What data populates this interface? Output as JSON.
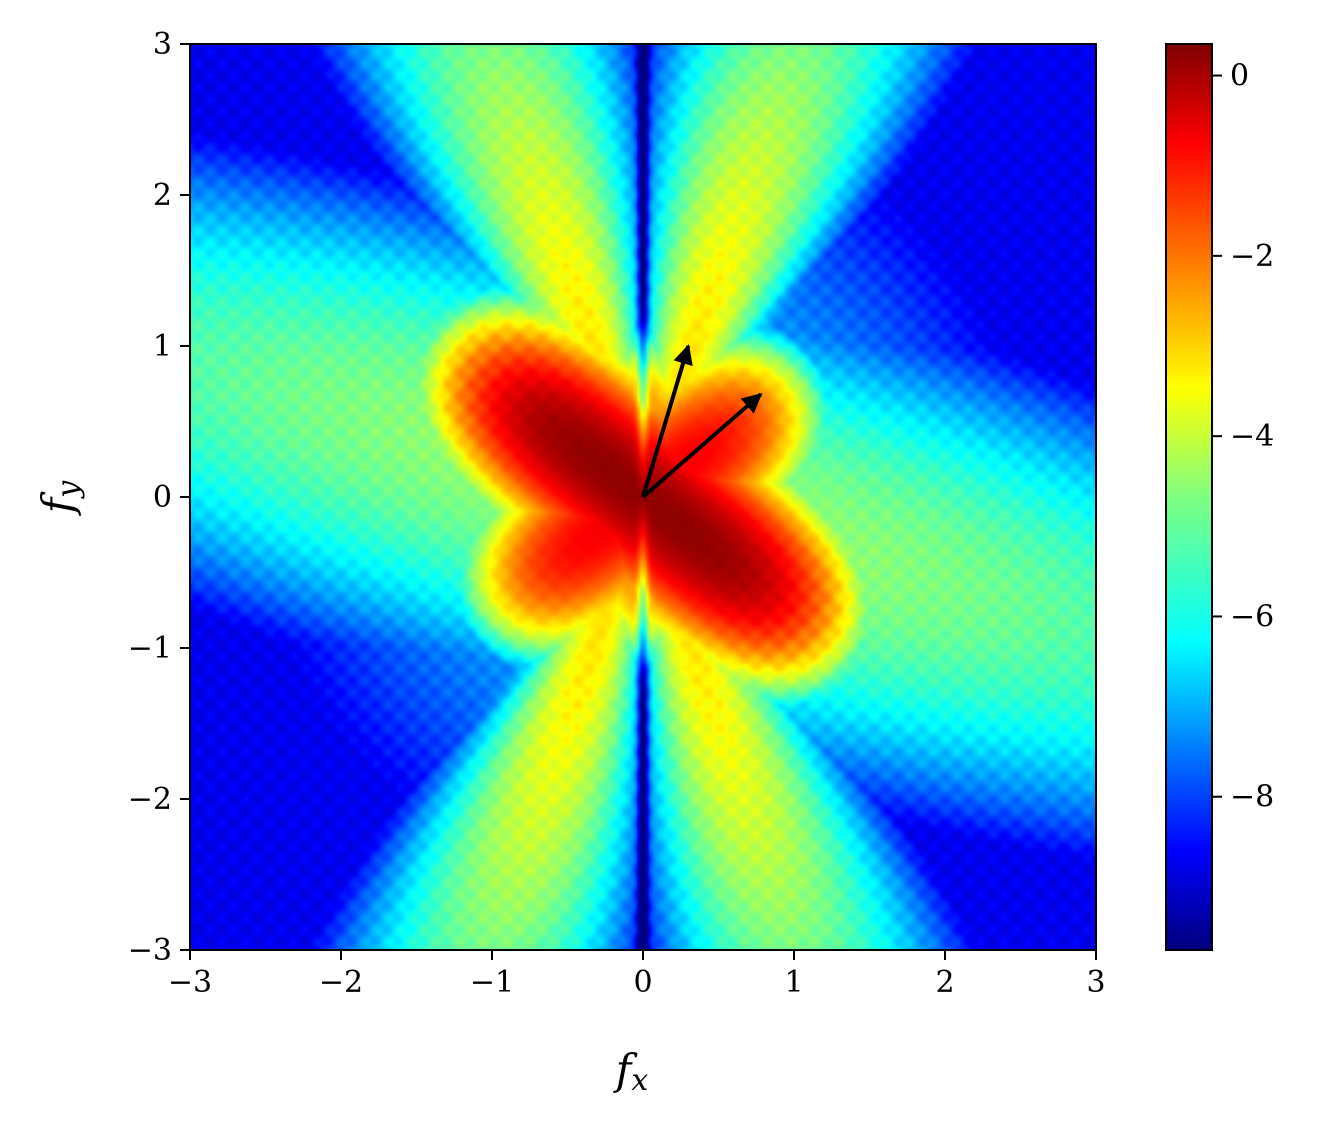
{
  "chart_data": {
    "type": "heatmap",
    "title": "",
    "xlabel": "f",
    "xlabel_sub": "x",
    "ylabel": "f",
    "ylabel_sub": "y",
    "xlim": [
      -3,
      3
    ],
    "ylim": [
      -3,
      3
    ],
    "xticks": [
      -3,
      -2,
      -1,
      0,
      1,
      2,
      3
    ],
    "yticks": [
      -3,
      -2,
      -1,
      0,
      1,
      2,
      3
    ],
    "xtick_labels": [
      "−3",
      "−2",
      "−1",
      "0",
      "1",
      "2",
      "3"
    ],
    "ytick_labels": [
      "−3",
      "−2",
      "−1",
      "0",
      "1",
      "2",
      "3"
    ],
    "colormap": "jet",
    "colorbar": {
      "range": [
        -9.7,
        0.35
      ],
      "ticks": [
        0,
        -2,
        -4,
        -6,
        -8
      ],
      "tick_labels": [
        "0",
        "−2",
        "−4",
        "−6",
        "−8"
      ]
    },
    "features": {
      "lobes": [
        {
          "direction_deg": -38,
          "length": 1.55,
          "width": 0.28,
          "peak": 0.2
        },
        {
          "direction_deg": 38,
          "length": 1.25,
          "width": 0.26,
          "peak": -0.8
        }
      ],
      "vertical_lobe_angle_deg": 70,
      "null_line_x": 0
    },
    "arrows": [
      {
        "x0": 0,
        "y0": 0,
        "x1": 0.3,
        "y1": 1.0
      },
      {
        "x0": 0,
        "y0": 0,
        "x1": 0.78,
        "y1": 0.68
      }
    ],
    "grid": false,
    "legend": "none"
  }
}
